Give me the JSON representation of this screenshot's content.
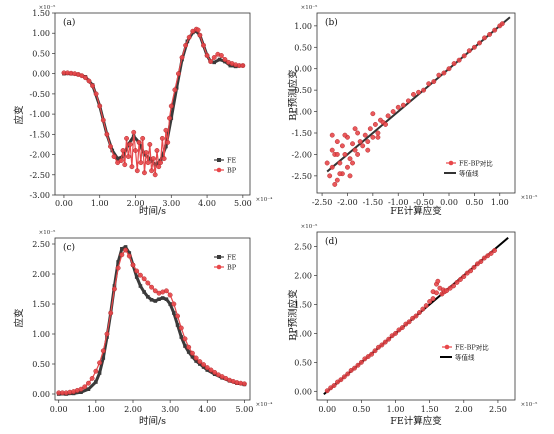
{
  "chart_data": [
    {
      "panel": "(a)",
      "type": "line",
      "xlabel": "时间/s",
      "ylabel": "应变",
      "x_multiplier": "×10⁻⁴",
      "y_multiplier": "×10⁻⁵",
      "xlim": [
        -0.25,
        5.2
      ],
      "ylim": [
        -3.0,
        1.5
      ],
      "xticks": [
        "0.00",
        "1.00",
        "2.00",
        "3.00",
        "4.00",
        "5.00"
      ],
      "yticks": [
        "-3.00",
        "-2.50",
        "-2.00",
        "-1.50",
        "-1.00",
        "-0.50",
        "0.00",
        "0.50",
        "1.00",
        "1.50"
      ],
      "legend": "right",
      "series": [
        {
          "name": "FE",
          "color": "#3a3a3a",
          "marker": "square",
          "x": [
            0.0,
            0.2,
            0.4,
            0.6,
            0.8,
            1.0,
            1.2,
            1.35,
            1.5,
            1.65,
            1.8,
            1.95,
            2.1,
            2.25,
            2.4,
            2.55,
            2.7,
            2.85,
            3.0,
            3.15,
            3.3,
            3.45,
            3.6,
            3.7,
            3.8,
            3.9,
            4.0,
            4.1,
            4.2,
            4.35,
            4.5,
            4.65,
            4.8,
            5.0
          ],
          "y": [
            0.0,
            0.0,
            -0.02,
            -0.08,
            -0.28,
            -0.8,
            -1.5,
            -1.9,
            -2.1,
            -2.05,
            -1.75,
            -1.55,
            -1.7,
            -2.0,
            -2.1,
            -2.25,
            -2.15,
            -1.8,
            -1.1,
            -0.35,
            0.35,
            0.8,
            1.02,
            1.05,
            0.95,
            0.7,
            0.45,
            0.3,
            0.28,
            0.35,
            0.3,
            0.2,
            0.18,
            0.2
          ]
        },
        {
          "name": "BP",
          "color": "#e8474a",
          "marker": "circle",
          "x": [
            0.0,
            0.1,
            0.2,
            0.3,
            0.4,
            0.5,
            0.6,
            0.7,
            0.8,
            0.9,
            1.0,
            1.1,
            1.2,
            1.3,
            1.4,
            1.5,
            1.6,
            1.65,
            1.7,
            1.75,
            1.8,
            1.85,
            1.9,
            1.95,
            2.0,
            2.05,
            2.1,
            2.15,
            2.2,
            2.25,
            2.3,
            2.35,
            2.4,
            2.45,
            2.5,
            2.55,
            2.6,
            2.65,
            2.7,
            2.75,
            2.8,
            2.85,
            2.9,
            2.95,
            3.0,
            3.1,
            3.2,
            3.3,
            3.4,
            3.5,
            3.6,
            3.7,
            3.75,
            3.8,
            3.9,
            4.0,
            4.1,
            4.2,
            4.3,
            4.4,
            4.5,
            4.6,
            4.7,
            4.8,
            4.9,
            5.0
          ],
          "y": [
            0.02,
            0.02,
            0.01,
            0.0,
            -0.02,
            -0.05,
            -0.1,
            -0.18,
            -0.3,
            -0.5,
            -0.8,
            -1.15,
            -1.5,
            -1.8,
            -2.05,
            -2.2,
            -2.15,
            -1.9,
            -2.25,
            -1.6,
            -2.05,
            -1.75,
            -2.3,
            -1.45,
            -1.9,
            -2.4,
            -1.7,
            -2.2,
            -1.6,
            -2.45,
            -1.95,
            -2.2,
            -1.75,
            -2.4,
            -2.1,
            -2.5,
            -1.9,
            -2.3,
            -2.2,
            -1.6,
            -2.1,
            -1.4,
            -1.7,
            -1.1,
            -0.8,
            -0.4,
            0.0,
            0.4,
            0.7,
            0.9,
            1.05,
            1.1,
            1.08,
            0.95,
            0.7,
            0.45,
            0.3,
            0.4,
            0.48,
            0.45,
            0.35,
            0.28,
            0.25,
            0.22,
            0.2,
            0.2
          ]
        }
      ]
    },
    {
      "panel": "(b)",
      "type": "scatter",
      "xlabel": "FE计算应变",
      "ylabel": "BP预测应变",
      "x_multiplier": "×10⁻⁵",
      "y_multiplier": "×10⁻⁵",
      "xlim": [
        -2.6,
        1.3
      ],
      "ylim": [
        -2.9,
        1.3
      ],
      "xticks": [
        "-2.50",
        "-2.00",
        "-1.50",
        "-1.00",
        "-0.50",
        "0.00",
        "0.50",
        "1.00"
      ],
      "yticks": [
        "-2.50",
        "-2.00",
        "-1.50",
        "-1.00",
        "-0.50",
        "0.00",
        "0.50",
        "1.00"
      ],
      "legend": "right",
      "reference_line": {
        "name": "等值线",
        "color": "#333333",
        "from": [
          -2.4,
          -2.4
        ],
        "to": [
          1.2,
          1.2
        ]
      },
      "series": [
        {
          "name": "FE-BP对比",
          "color": "#e8474a",
          "marker": "circle",
          "x": [
            -2.4,
            -2.35,
            -2.3,
            -2.3,
            -2.25,
            -2.2,
            -2.2,
            -2.15,
            -2.1,
            -2.1,
            -2.05,
            -2.0,
            -2.0,
            -1.95,
            -1.9,
            -1.9,
            -1.85,
            -1.8,
            -1.8,
            -1.75,
            -1.7,
            -1.65,
            -1.6,
            -1.55,
            -1.5,
            -1.45,
            -1.4,
            -1.35,
            -1.3,
            -1.25,
            -1.2,
            -1.1,
            -1.0,
            -0.9,
            -0.8,
            -0.7,
            -0.6,
            -0.5,
            -0.4,
            -0.3,
            -0.2,
            -0.1,
            0.0,
            0.1,
            0.2,
            0.3,
            0.4,
            0.5,
            0.6,
            0.7,
            0.8,
            0.9,
            1.0,
            1.05,
            -2.25,
            -2.15,
            -2.05,
            -1.95,
            -1.85,
            -2.3,
            -2.2,
            -1.6,
            -1.5,
            -1.4
          ],
          "y": [
            -2.2,
            -2.5,
            -1.9,
            -2.3,
            -2.0,
            -2.6,
            -1.7,
            -2.2,
            -1.8,
            -2.45,
            -2.0,
            -1.6,
            -2.3,
            -2.1,
            -1.75,
            -2.2,
            -1.9,
            -1.5,
            -2.0,
            -1.7,
            -1.8,
            -1.55,
            -1.7,
            -1.4,
            -1.6,
            -1.3,
            -1.5,
            -1.2,
            -1.25,
            -1.3,
            -1.1,
            -1.0,
            -0.9,
            -0.85,
            -0.75,
            -0.6,
            -0.55,
            -0.5,
            -0.35,
            -0.3,
            -0.15,
            -0.1,
            0.0,
            0.12,
            0.2,
            0.3,
            0.42,
            0.5,
            0.6,
            0.72,
            0.8,
            0.9,
            1.0,
            1.05,
            -2.7,
            -2.45,
            -1.55,
            -2.5,
            -1.4,
            -1.55,
            -2.0,
            -1.9,
            -1.05,
            -1.6
          ]
        }
      ]
    },
    {
      "panel": "(c)",
      "type": "line",
      "xlabel": "时间/s",
      "ylabel": "应变",
      "x_multiplier": "×10⁻⁴",
      "y_multiplier": "×10⁻⁵",
      "xlim": [
        -0.1,
        5.15
      ],
      "ylim": [
        -0.1,
        2.6
      ],
      "xticks": [
        "0.00",
        "1.00",
        "2.00",
        "3.00",
        "4.00",
        "5.00"
      ],
      "yticks": [
        "0.00",
        "0.50",
        "1.00",
        "1.50",
        "2.00",
        "2.50"
      ],
      "legend": "top-right",
      "series": [
        {
          "name": "FE",
          "color": "#3a3a3a",
          "marker": "square",
          "x": [
            0.0,
            0.2,
            0.4,
            0.6,
            0.8,
            1.0,
            1.1,
            1.2,
            1.3,
            1.4,
            1.5,
            1.6,
            1.7,
            1.8,
            1.9,
            2.0,
            2.1,
            2.2,
            2.3,
            2.4,
            2.5,
            2.6,
            2.7,
            2.8,
            2.9,
            3.0,
            3.1,
            3.2,
            3.3,
            3.4,
            3.5,
            3.6,
            3.7,
            3.8,
            3.9,
            4.0,
            4.2,
            4.4,
            4.6,
            4.8,
            5.0
          ],
          "y": [
            0.0,
            0.0,
            0.01,
            0.03,
            0.08,
            0.2,
            0.35,
            0.6,
            0.95,
            1.35,
            1.8,
            2.2,
            2.42,
            2.45,
            2.35,
            2.15,
            1.95,
            1.8,
            1.7,
            1.62,
            1.57,
            1.55,
            1.58,
            1.6,
            1.58,
            1.5,
            1.35,
            1.15,
            0.95,
            0.8,
            0.7,
            0.62,
            0.55,
            0.5,
            0.45,
            0.4,
            0.33,
            0.27,
            0.22,
            0.18,
            0.16
          ]
        },
        {
          "name": "BP",
          "color": "#e8474a",
          "marker": "circle",
          "x": [
            0.0,
            0.1,
            0.2,
            0.3,
            0.4,
            0.5,
            0.6,
            0.7,
            0.8,
            0.9,
            1.0,
            1.1,
            1.2,
            1.3,
            1.4,
            1.5,
            1.6,
            1.7,
            1.8,
            1.9,
            2.0,
            2.1,
            2.2,
            2.3,
            2.4,
            2.5,
            2.6,
            2.7,
            2.8,
            2.9,
            3.0,
            3.1,
            3.2,
            3.3,
            3.4,
            3.5,
            3.6,
            3.7,
            3.8,
            3.9,
            4.0,
            4.1,
            4.2,
            4.3,
            4.4,
            4.5,
            4.6,
            4.7,
            4.8,
            4.9,
            5.0
          ],
          "y": [
            0.02,
            0.02,
            0.02,
            0.03,
            0.04,
            0.06,
            0.08,
            0.12,
            0.18,
            0.26,
            0.38,
            0.52,
            0.72,
            1.0,
            1.35,
            1.75,
            2.1,
            2.32,
            2.4,
            2.3,
            2.15,
            2.05,
            1.98,
            1.92,
            1.85,
            1.78,
            1.72,
            1.68,
            1.7,
            1.72,
            1.65,
            1.5,
            1.3,
            1.1,
            0.92,
            0.78,
            0.68,
            0.6,
            0.54,
            0.49,
            0.44,
            0.4,
            0.36,
            0.32,
            0.29,
            0.26,
            0.23,
            0.21,
            0.19,
            0.18,
            0.17
          ]
        }
      ]
    },
    {
      "panel": "(d)",
      "type": "scatter",
      "xlabel": "FE计算应变",
      "ylabel": "BP预测应变",
      "x_multiplier": "×10⁻⁵",
      "y_multiplier": "×10⁻⁵",
      "xlim": [
        -0.15,
        2.75
      ],
      "ylim": [
        -0.15,
        2.75
      ],
      "xticks": [
        "0.00",
        "0.50",
        "1.00",
        "1.50",
        "2.00",
        "2.50"
      ],
      "yticks": [
        "0.00",
        "0.50",
        "1.00",
        "1.50",
        "2.00",
        "2.50"
      ],
      "legend": "right",
      "reference_line": {
        "name": "等值线",
        "color": "#000000",
        "from": [
          -0.05,
          -0.05
        ],
        "to": [
          2.65,
          2.65
        ]
      },
      "series": [
        {
          "name": "FE-BP对比",
          "color": "#e8474a",
          "marker": "circle",
          "x": [
            0.0,
            0.05,
            0.1,
            0.15,
            0.2,
            0.25,
            0.3,
            0.35,
            0.4,
            0.45,
            0.5,
            0.55,
            0.6,
            0.65,
            0.7,
            0.75,
            0.8,
            0.85,
            0.9,
            0.95,
            1.0,
            1.05,
            1.1,
            1.15,
            1.2,
            1.25,
            1.3,
            1.35,
            1.4,
            1.45,
            1.5,
            1.55,
            1.55,
            1.6,
            1.6,
            1.62,
            1.65,
            1.68,
            1.7,
            1.72,
            1.75,
            1.8,
            1.85,
            1.9,
            1.95,
            2.0,
            2.05,
            2.1,
            2.15,
            2.2,
            2.25,
            2.3,
            2.35,
            2.4,
            2.45
          ],
          "y": [
            0.01,
            0.06,
            0.1,
            0.16,
            0.2,
            0.25,
            0.3,
            0.36,
            0.4,
            0.45,
            0.5,
            0.56,
            0.6,
            0.64,
            0.7,
            0.76,
            0.8,
            0.85,
            0.9,
            0.96,
            1.0,
            1.06,
            1.1,
            1.16,
            1.2,
            1.26,
            1.3,
            1.36,
            1.42,
            1.48,
            1.55,
            1.72,
            1.6,
            1.85,
            1.7,
            1.9,
            1.78,
            1.68,
            1.75,
            1.72,
            1.74,
            1.78,
            1.82,
            1.88,
            1.93,
            1.98,
            2.04,
            2.08,
            2.14,
            2.2,
            2.24,
            2.3,
            2.34,
            2.38,
            2.43
          ]
        }
      ]
    }
  ]
}
